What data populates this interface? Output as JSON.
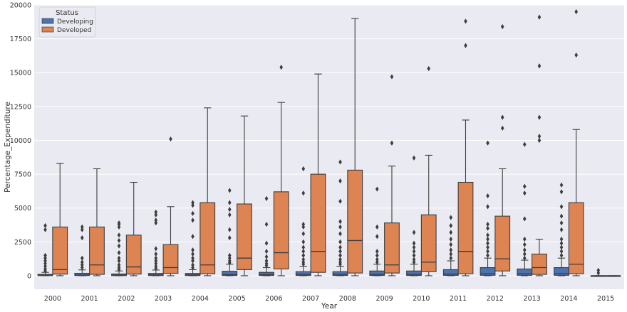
{
  "chart_data": {
    "type": "box",
    "xlabel": "Year",
    "ylabel": "Percentage_Expenditure",
    "ylim": [
      -1000,
      20000
    ],
    "yticks": [
      0,
      2500,
      5000,
      7500,
      10000,
      12500,
      15000,
      17500,
      20000
    ],
    "grid": true,
    "legend": {
      "title": "Status",
      "placement": "top-left",
      "entries": [
        {
          "name": "Developing",
          "color": "#4c72b0"
        },
        {
          "name": "Developed",
          "color": "#dd8452"
        }
      ]
    },
    "categories": [
      "2000",
      "2001",
      "2002",
      "2003",
      "2004",
      "2005",
      "2006",
      "2007",
      "2008",
      "2009",
      "2010",
      "2011",
      "2012",
      "2013",
      "2014",
      "2015"
    ],
    "series": [
      {
        "name": "Developing",
        "color": "#4c72b0",
        "boxes": [
          {
            "min": 0,
            "q1": 10,
            "median": 40,
            "q3": 100,
            "max": 250,
            "outliers": [
              350,
              500,
              700,
              900,
              1100,
              1300,
              1500,
              3400,
              3700
            ]
          },
          {
            "min": 0,
            "q1": 15,
            "median": 50,
            "q3": 180,
            "max": 430,
            "outliers": [
              600,
              800,
              1000,
              1300,
              2800,
              3400,
              3600
            ]
          },
          {
            "min": 0,
            "q1": 10,
            "median": 50,
            "q3": 130,
            "max": 350,
            "outliers": [
              450,
              600,
              800,
              1100,
              1300,
              1700,
              2200,
              2600,
              3000,
              3600,
              3800,
              3900
            ]
          },
          {
            "min": 0,
            "q1": 15,
            "median": 60,
            "q3": 170,
            "max": 420,
            "outliers": [
              550,
              700,
              900,
              1100,
              1300,
              1600,
              2000,
              3900,
              4100,
              4500,
              4700
            ]
          },
          {
            "min": 0,
            "q1": 15,
            "median": 60,
            "q3": 170,
            "max": 450,
            "outliers": [
              600,
              800,
              1100,
              1300,
              1600,
              1900,
              2900,
              4100,
              4600,
              5200,
              5400
            ]
          },
          {
            "min": 0,
            "q1": 20,
            "median": 80,
            "q3": 330,
            "max": 850,
            "outliers": [
              950,
              1100,
              1300,
              1500,
              2800,
              3400,
              4500,
              4900,
              5400,
              6300
            ]
          },
          {
            "min": 0,
            "q1": 20,
            "median": 80,
            "q3": 250,
            "max": 600,
            "outliers": [
              750,
              900,
              1100,
              1400,
              1800,
              2400,
              3800,
              5700
            ]
          },
          {
            "min": 0,
            "q1": 20,
            "median": 100,
            "q3": 300,
            "max": 700,
            "outliers": [
              850,
              1000,
              1200,
              1500,
              1800,
              2100,
              2500,
              3100,
              3600,
              3800,
              6100,
              7900
            ]
          },
          {
            "min": 0,
            "q1": 20,
            "median": 100,
            "q3": 300,
            "max": 700,
            "outliers": [
              850,
              1000,
              1200,
              1500,
              1800,
              2100,
              2500,
              3100,
              3600,
              4000,
              5500,
              7000,
              8400
            ]
          },
          {
            "min": 0,
            "q1": 20,
            "median": 100,
            "q3": 350,
            "max": 850,
            "outliers": [
              1000,
              1200,
              1500,
              1800,
              2900,
              3600,
              6400
            ]
          },
          {
            "min": 0,
            "q1": 20,
            "median": 100,
            "q3": 350,
            "max": 850,
            "outliers": [
              1000,
              1200,
              1500,
              1800,
              2100,
              2400,
              3200,
              8700
            ]
          },
          {
            "min": 0,
            "q1": 25,
            "median": 120,
            "q3": 450,
            "max": 1100,
            "outliers": [
              1300,
              1600,
              1900,
              2300,
              2700,
              3200,
              3700,
              4300
            ]
          },
          {
            "min": 0,
            "q1": 30,
            "median": 150,
            "q3": 600,
            "max": 1300,
            "outliers": [
              1500,
              1800,
              2100,
              2400,
              2700,
              3000,
              3500,
              3800,
              5100,
              5900,
              9800
            ]
          },
          {
            "min": 0,
            "q1": 30,
            "median": 150,
            "q3": 500,
            "max": 1150,
            "outliers": [
              1300,
              1600,
              1900,
              2300,
              2700,
              4200,
              6100,
              6600,
              9700
            ]
          },
          {
            "min": 0,
            "q1": 30,
            "median": 160,
            "q3": 600,
            "max": 1300,
            "outliers": [
              1500,
              1800,
              2100,
              2400,
              2700,
              3400,
              3900,
              4400,
              5100,
              6200,
              6700
            ]
          },
          {
            "min": 0,
            "q1": 0,
            "median": 0,
            "q3": 0,
            "max": 0,
            "outliers": [
              200,
              400
            ]
          }
        ]
      },
      {
        "name": "Developed",
        "color": "#dd8452",
        "boxes": [
          {
            "min": 0,
            "q1": 120,
            "median": 450,
            "q3": 3600,
            "max": 8300,
            "outliers": []
          },
          {
            "min": 0,
            "q1": 100,
            "median": 800,
            "q3": 3600,
            "max": 7900,
            "outliers": []
          },
          {
            "min": 0,
            "q1": 120,
            "median": 650,
            "q3": 3000,
            "max": 6900,
            "outliers": []
          },
          {
            "min": 0,
            "q1": 180,
            "median": 600,
            "q3": 2300,
            "max": 5100,
            "outliers": [
              10100
            ]
          },
          {
            "min": 0,
            "q1": 150,
            "median": 800,
            "q3": 5400,
            "max": 12400,
            "outliers": []
          },
          {
            "min": 0,
            "q1": 450,
            "median": 1300,
            "q3": 5300,
            "max": 11800,
            "outliers": []
          },
          {
            "min": 0,
            "q1": 500,
            "median": 1700,
            "q3": 6200,
            "max": 12800,
            "outliers": [
              15400
            ]
          },
          {
            "min": 0,
            "q1": 250,
            "median": 1800,
            "q3": 7500,
            "max": 14900,
            "outliers": []
          },
          {
            "min": 0,
            "q1": 200,
            "median": 2600,
            "q3": 7800,
            "max": 19000,
            "outliers": []
          },
          {
            "min": 0,
            "q1": 200,
            "median": 800,
            "q3": 3900,
            "max": 8100,
            "outliers": [
              9800,
              14700
            ]
          },
          {
            "min": 0,
            "q1": 300,
            "median": 1000,
            "q3": 4500,
            "max": 8900,
            "outliers": [
              15300
            ]
          },
          {
            "min": 0,
            "q1": 150,
            "median": 1800,
            "q3": 6900,
            "max": 11500,
            "outliers": [
              17000,
              18800
            ]
          },
          {
            "min": 0,
            "q1": 350,
            "median": 1250,
            "q3": 4400,
            "max": 7900,
            "outliers": [
              10900,
              11700,
              18400
            ]
          },
          {
            "min": 0,
            "q1": 100,
            "median": 600,
            "q3": 1600,
            "max": 2700,
            "outliers": [
              10000,
              10300,
              11700,
              15500,
              19100
            ]
          },
          {
            "min": 0,
            "q1": 150,
            "median": 850,
            "q3": 5400,
            "max": 10800,
            "outliers": [
              16300,
              19500
            ]
          },
          {
            "min": 0,
            "q1": 0,
            "median": 0,
            "q3": 0,
            "max": 0,
            "outliers": []
          }
        ]
      }
    ]
  }
}
